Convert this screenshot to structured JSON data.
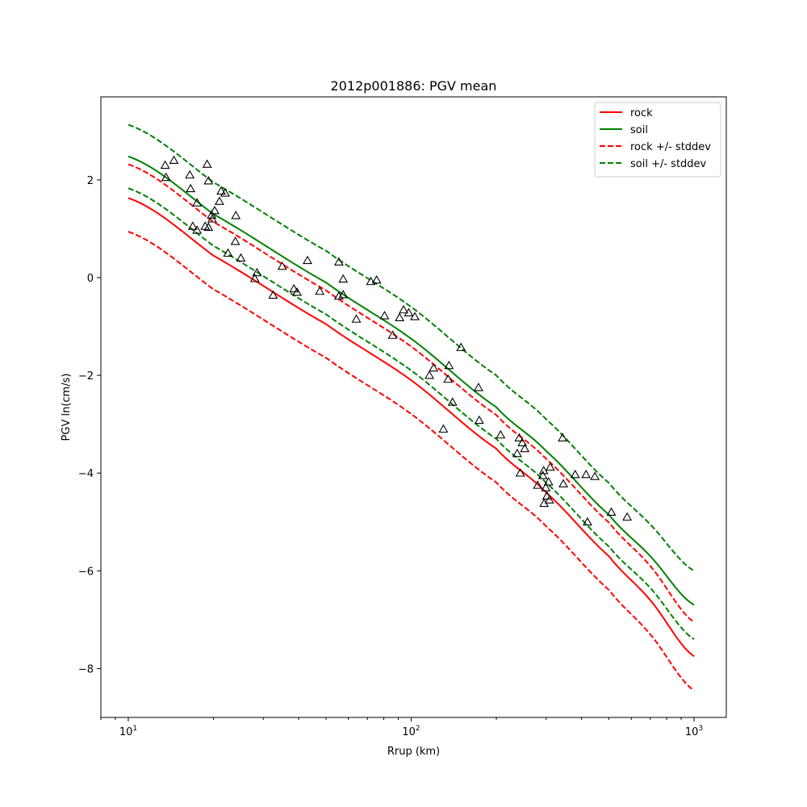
{
  "chart_data": {
    "type": "line",
    "title": "2012p001886: PGV mean",
    "xlabel": "Rrup (km)",
    "ylabel": "PGV ln(cm/s)",
    "x_scale": "log",
    "xlim": [
      8.0,
      1300.0
    ],
    "ylim": [
      -9.0,
      3.7
    ],
    "x_ticks": [
      {
        "value": 10,
        "base": "10",
        "exp": "1"
      },
      {
        "value": 100,
        "base": "10",
        "exp": "2"
      },
      {
        "value": 1000,
        "base": "10",
        "exp": "3"
      }
    ],
    "y_ticks": [
      {
        "value": 2,
        "label": "2"
      },
      {
        "value": 0,
        "label": "0"
      },
      {
        "value": -2,
        "label": "−2"
      },
      {
        "value": -4,
        "label": "−4"
      },
      {
        "value": -6,
        "label": "−6"
      },
      {
        "value": -8,
        "label": "−8"
      }
    ],
    "grid": false,
    "legend_position": "top-right",
    "series": [
      {
        "name": "rock",
        "color": "#ff0000",
        "style": "solid",
        "x": [
          10,
          20,
          50,
          100,
          200,
          300,
          500,
          700,
          1000
        ],
        "y": [
          1.63,
          0.45,
          -0.95,
          -2.1,
          -3.5,
          -4.4,
          -5.7,
          -6.6,
          -7.75
        ]
      },
      {
        "name": "soil",
        "color": "#008000",
        "style": "solid",
        "x": [
          10,
          20,
          50,
          100,
          200,
          300,
          500,
          700,
          1000
        ],
        "y": [
          2.48,
          1.3,
          -0.1,
          -1.25,
          -2.65,
          -3.55,
          -4.85,
          -5.7,
          -6.7
        ]
      },
      {
        "name": "rock +/- stddev",
        "color": "#ff0000",
        "style": "dashed",
        "x": [
          10,
          20,
          50,
          100,
          200,
          300,
          500,
          700,
          1000
        ],
        "y": [
          2.32,
          1.14,
          -0.26,
          -1.41,
          -2.81,
          -3.71,
          -5.01,
          -5.9,
          -7.05
        ]
      },
      {
        "name": "",
        "color": "#ff0000",
        "style": "dashed",
        "x": [
          10,
          20,
          50,
          100,
          200,
          300,
          500,
          700,
          1000
        ],
        "y": [
          0.94,
          -0.24,
          -1.64,
          -2.79,
          -4.19,
          -5.09,
          -6.39,
          -7.3,
          -8.45
        ]
      },
      {
        "name": "soil +/- stddev",
        "color": "#008000",
        "style": "dashed",
        "x": [
          10,
          20,
          50,
          100,
          200,
          300,
          500,
          700,
          1000
        ],
        "y": [
          3.13,
          1.95,
          0.55,
          -0.6,
          -2.0,
          -2.9,
          -4.2,
          -5.05,
          -6.0
        ]
      },
      {
        "name": "",
        "color": "#008000",
        "style": "dashed",
        "x": [
          10,
          20,
          50,
          100,
          200,
          300,
          500,
          700,
          1000
        ],
        "y": [
          1.83,
          0.65,
          -0.75,
          -1.9,
          -3.3,
          -4.2,
          -5.5,
          -6.35,
          -7.4
        ]
      }
    ],
    "observations": {
      "marker": "triangle",
      "color": "#000000",
      "points": [
        [
          13.5,
          2.3
        ],
        [
          14.5,
          2.4
        ],
        [
          13.6,
          2.05
        ],
        [
          16.5,
          2.1
        ],
        [
          19.0,
          2.32
        ],
        [
          19.2,
          1.98
        ],
        [
          16.6,
          1.82
        ],
        [
          17.5,
          1.53
        ],
        [
          21.3,
          1.77
        ],
        [
          22.0,
          1.73
        ],
        [
          21.0,
          1.56
        ],
        [
          20.2,
          1.37
        ],
        [
          19.7,
          1.28
        ],
        [
          19.8,
          1.2
        ],
        [
          24.0,
          1.27
        ],
        [
          16.9,
          1.05
        ],
        [
          17.5,
          0.97
        ],
        [
          18.7,
          1.05
        ],
        [
          19.2,
          1.03
        ],
        [
          23.9,
          0.74
        ],
        [
          22.5,
          0.5
        ],
        [
          25.0,
          0.4
        ],
        [
          28.5,
          0.1
        ],
        [
          28.0,
          -0.02
        ],
        [
          32.5,
          -0.36
        ],
        [
          35.0,
          0.23
        ],
        [
          38.5,
          -0.23
        ],
        [
          39.5,
          -0.3
        ],
        [
          43.0,
          0.35
        ],
        [
          47.5,
          -0.28
        ],
        [
          55.5,
          0.32
        ],
        [
          57.5,
          -0.03
        ],
        [
          55.5,
          -0.38
        ],
        [
          57.5,
          -0.35
        ],
        [
          64.0,
          -0.85
        ],
        [
          72.0,
          -0.08
        ],
        [
          75.5,
          -0.05
        ],
        [
          80.5,
          -0.78
        ],
        [
          86.0,
          -1.18
        ],
        [
          91.0,
          -0.82
        ],
        [
          94.0,
          -0.66
        ],
        [
          98.0,
          -0.72
        ],
        [
          103.0,
          -0.8
        ],
        [
          116.0,
          -2.0
        ],
        [
          120.0,
          -1.85
        ],
        [
          130.0,
          -3.1
        ],
        [
          135.0,
          -2.08
        ],
        [
          136.0,
          -1.8
        ],
        [
          140.0,
          -2.55
        ],
        [
          150.0,
          -1.43
        ],
        [
          173.0,
          -2.25
        ],
        [
          174.0,
          -2.92
        ],
        [
          207.0,
          -3.22
        ],
        [
          237.0,
          -3.6
        ],
        [
          241.0,
          -3.28
        ],
        [
          243.0,
          -4.0
        ],
        [
          247.0,
          -3.38
        ],
        [
          252.0,
          -3.5
        ],
        [
          280.0,
          -4.25
        ],
        [
          292.0,
          -4.05
        ],
        [
          294.0,
          -3.95
        ],
        [
          295.0,
          -4.62
        ],
        [
          299.0,
          -4.3
        ],
        [
          302.0,
          -4.47
        ],
        [
          306.0,
          -4.18
        ],
        [
          308.0,
          -4.55
        ],
        [
          310.0,
          -3.88
        ],
        [
          343.0,
          -3.28
        ],
        [
          345.0,
          -4.22
        ],
        [
          380.0,
          -4.03
        ],
        [
          415.0,
          -4.03
        ],
        [
          420.0,
          -5.0
        ],
        [
          446.0,
          -4.07
        ],
        [
          510.0,
          -4.8
        ],
        [
          580.0,
          -4.9
        ]
      ]
    }
  }
}
